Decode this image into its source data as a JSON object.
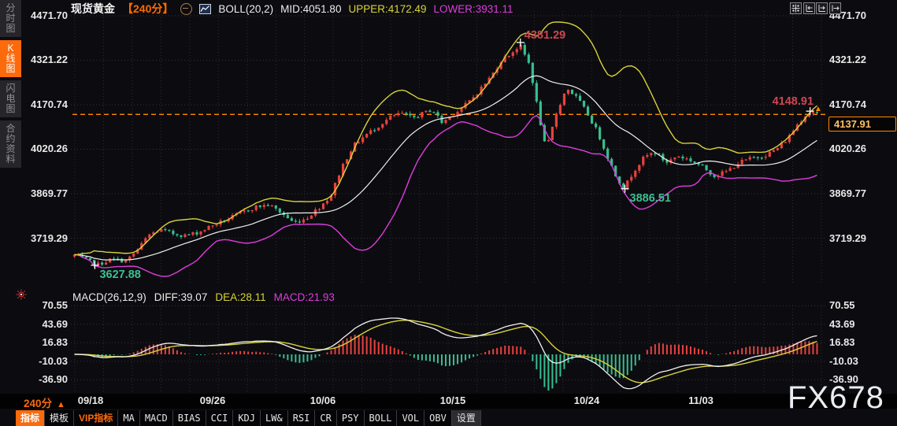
{
  "header": {
    "symbol": "现货黄金",
    "period": "【240分】",
    "boll_label": "BOLL(20,2)",
    "mid": "MID:4051.80",
    "upper": "UPPER:4172.49",
    "lower": "LOWER:3931.11"
  },
  "sidebar": {
    "tabs": [
      {
        "label": "分时图",
        "active": false
      },
      {
        "label": "K线图",
        "active": true
      },
      {
        "label": "闪电图",
        "active": false
      },
      {
        "label": "合约资料",
        "active": false
      }
    ]
  },
  "main_axis": {
    "left_labels": [
      "4471.70",
      "4321.22",
      "4170.74",
      "4020.26",
      "3869.77",
      "3719.29"
    ],
    "right_labels": [
      "4471.70",
      "4321.22",
      "4170.74",
      "4020.26",
      "3869.77",
      "3719.29"
    ],
    "current_price": "4137.91"
  },
  "macd_header": {
    "title": "MACD(26,12,9)",
    "diff": "DIFF:39.07",
    "dea": "DEA:28.11",
    "macd": "MACD:21.93",
    "axis_labels": [
      "70.55",
      "43.69",
      "16.83",
      "-10.03",
      "-36.90"
    ]
  },
  "xaxis": {
    "period_label": "240分",
    "dates": [
      "09/18",
      "09/26",
      "10/06",
      "10/15",
      "10/24",
      "11/03"
    ]
  },
  "toolbar": {
    "items": [
      {
        "label": "指标",
        "style": "active"
      },
      {
        "label": "模板",
        "style": "plain"
      },
      {
        "label": "VIP指标",
        "style": "vip"
      },
      {
        "label": "MA",
        "style": "mono"
      },
      {
        "label": "MACD",
        "style": "mono"
      },
      {
        "label": "BIAS",
        "style": "mono"
      },
      {
        "label": "CCI",
        "style": "mono"
      },
      {
        "label": "KDJ",
        "style": "mono"
      },
      {
        "label": "LW&",
        "style": "mono"
      },
      {
        "label": "RSI",
        "style": "mono"
      },
      {
        "label": "CR",
        "style": "mono"
      },
      {
        "label": "PSY",
        "style": "mono"
      },
      {
        "label": "BOLL",
        "style": "mono"
      },
      {
        "label": "VOL",
        "style": "mono"
      },
      {
        "label": "OBV",
        "style": "mono"
      },
      {
        "label": "设置",
        "style": "settings"
      }
    ]
  },
  "watermark": "FX678",
  "chart_data": {
    "type": "candlestick_with_macd",
    "instrument": "现货黄金",
    "interval_minutes": 240,
    "y_axis_ticks": [
      4471.7,
      4321.22,
      4170.74,
      4020.26,
      3869.77,
      3719.29
    ],
    "x_axis_dates": [
      "09/18",
      "09/26",
      "10/06",
      "10/15",
      "10/24",
      "11/03"
    ],
    "boll": {
      "period": 20,
      "k": 2,
      "mid": 4051.8,
      "upper": 4172.49,
      "lower": 3931.11
    },
    "current_price": 4137.91,
    "macd": {
      "params": [
        26,
        12,
        9
      ],
      "diff": 39.07,
      "dea": 28.11,
      "macd": 21.93,
      "axis_ticks": [
        70.55,
        43.69,
        16.83,
        -10.03,
        -36.9
      ]
    },
    "key_points": [
      {
        "f": 0.03,
        "value": 3627.88,
        "text": "3627.88",
        "kind": "low"
      },
      {
        "f": 0.6,
        "value": 4381.29,
        "text": "4381.29",
        "kind": "high"
      },
      {
        "f": 0.74,
        "value": 3886.51,
        "text": "3886.51",
        "kind": "low"
      },
      {
        "f": 0.988,
        "value": 4148.91,
        "text": "4148.91",
        "kind": "high2"
      }
    ],
    "price_path": [
      [
        0,
        3662
      ],
      [
        0.012,
        3650
      ],
      [
        0.03,
        3629
      ],
      [
        0.05,
        3648
      ],
      [
        0.07,
        3642
      ],
      [
        0.085,
        3680
      ],
      [
        0.1,
        3730
      ],
      [
        0.115,
        3748
      ],
      [
        0.132,
        3735
      ],
      [
        0.15,
        3728
      ],
      [
        0.168,
        3740
      ],
      [
        0.185,
        3762
      ],
      [
        0.205,
        3782
      ],
      [
        0.225,
        3806
      ],
      [
        0.245,
        3826
      ],
      [
        0.262,
        3832
      ],
      [
        0.278,
        3806
      ],
      [
        0.295,
        3772
      ],
      [
        0.312,
        3786
      ],
      [
        0.33,
        3825
      ],
      [
        0.345,
        3862
      ],
      [
        0.36,
        3960
      ],
      [
        0.375,
        4030
      ],
      [
        0.392,
        4068
      ],
      [
        0.41,
        4100
      ],
      [
        0.425,
        4128
      ],
      [
        0.44,
        4142
      ],
      [
        0.455,
        4125
      ],
      [
        0.468,
        4140
      ],
      [
        0.482,
        4155
      ],
      [
        0.495,
        4110
      ],
      [
        0.508,
        4135
      ],
      [
        0.522,
        4160
      ],
      [
        0.535,
        4190
      ],
      [
        0.548,
        4228
      ],
      [
        0.562,
        4270
      ],
      [
        0.575,
        4322
      ],
      [
        0.588,
        4345
      ],
      [
        0.6,
        4372
      ],
      [
        0.613,
        4305
      ],
      [
        0.625,
        4140
      ],
      [
        0.635,
        4015
      ],
      [
        0.65,
        4150
      ],
      [
        0.663,
        4228
      ],
      [
        0.678,
        4190
      ],
      [
        0.692,
        4135
      ],
      [
        0.705,
        4075
      ],
      [
        0.717,
        4000
      ],
      [
        0.728,
        3935
      ],
      [
        0.74,
        3888
      ],
      [
        0.754,
        3950
      ],
      [
        0.768,
        3995
      ],
      [
        0.782,
        4010
      ],
      [
        0.797,
        3975
      ],
      [
        0.812,
        3998
      ],
      [
        0.828,
        3985
      ],
      [
        0.845,
        3962
      ],
      [
        0.862,
        3930
      ],
      [
        0.878,
        3945
      ],
      [
        0.895,
        3975
      ],
      [
        0.912,
        3990
      ],
      [
        0.93,
        4000
      ],
      [
        0.945,
        4020
      ],
      [
        0.96,
        4055
      ],
      [
        0.972,
        4100
      ],
      [
        0.984,
        4135
      ],
      [
        0.993,
        4150
      ],
      [
        1,
        4140
      ]
    ],
    "colors": {
      "up": "#e8413e",
      "down": "#35bf8f",
      "boll_upper": "#d9d33a",
      "boll_mid": "#f0f0f0",
      "boll_lower": "#dd3ddd",
      "price_line": "#ff8a00",
      "accent": "#fb6a0b"
    }
  }
}
